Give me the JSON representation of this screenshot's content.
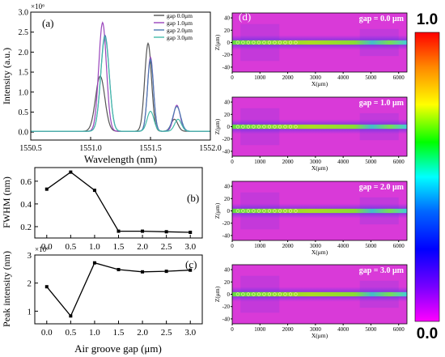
{
  "chart_data": [
    {
      "panel_label": "(a)",
      "type": "line",
      "xlabel": "Wavelength (nm)",
      "ylabel": "Intensity (a.u.)",
      "y_multiplier": "×10⁶",
      "xlim": [
        1550.5,
        1552.0
      ],
      "ylim": [
        -0.2,
        3.0
      ],
      "x_ticks": [
        "1550.5",
        "1551.0",
        "1551.5",
        "1552.0"
      ],
      "y_ticks": [
        "0.0",
        "0.5",
        "1.0",
        "1.5",
        "2.0",
        "2.5",
        "3.0"
      ],
      "legend_position": "top-right",
      "series": [
        {
          "name": "gap 0.0μm",
          "color": "#555555",
          "peaks": [
            {
              "x": 1551.08,
              "h": 1.38,
              "w": 0.055
            },
            {
              "x": 1551.48,
              "h": 2.2,
              "w": 0.04
            },
            {
              "x": 1551.7,
              "h": 0.3,
              "w": 0.04
            }
          ]
        },
        {
          "name": "gap 1.0μm",
          "color": "#9944bb",
          "peaks": [
            {
              "x": 1551.1,
              "h": 2.72,
              "w": 0.045
            },
            {
              "x": 1551.5,
              "h": 1.85,
              "w": 0.035
            },
            {
              "x": 1551.72,
              "h": 0.65,
              "w": 0.04
            }
          ]
        },
        {
          "name": "gap 2.0μm",
          "color": "#4a7ab0",
          "peaks": [
            {
              "x": 1551.12,
              "h": 2.4,
              "w": 0.05
            },
            {
              "x": 1551.5,
              "h": 1.8,
              "w": 0.035
            },
            {
              "x": 1551.72,
              "h": 0.62,
              "w": 0.045
            }
          ]
        },
        {
          "name": "gap 3.0μm",
          "color": "#44bbaa",
          "peaks": [
            {
              "x": 1551.12,
              "h": 2.35,
              "w": 0.05
            },
            {
              "x": 1551.5,
              "h": 0.5,
              "w": 0.04
            },
            {
              "x": 1551.73,
              "h": 0.3,
              "w": 0.04
            }
          ]
        }
      ]
    },
    {
      "panel_label": "(b)",
      "type": "line",
      "xlabel": "",
      "ylabel": "FWHM (nm)",
      "xlim": [
        -0.25,
        3.25
      ],
      "ylim": [
        0.1,
        0.72
      ],
      "x_ticks": [
        "0.0",
        "0.5",
        "1.0",
        "1.5",
        "2.0",
        "2.5",
        "3.0"
      ],
      "y_ticks": [
        "0.2",
        "0.4",
        "0.6"
      ],
      "x": [
        0.0,
        0.5,
        1.0,
        1.5,
        2.0,
        2.5,
        3.0
      ],
      "y": [
        0.53,
        0.68,
        0.52,
        0.16,
        0.16,
        0.155,
        0.15
      ]
    },
    {
      "panel_label": "(c)",
      "type": "line",
      "xlabel": "Air groove gap (μm)",
      "ylabel": "Peak intensity (nm)",
      "y_multiplier": "×10⁶",
      "xlim": [
        -0.25,
        3.25
      ],
      "ylim": [
        0.55,
        3.0
      ],
      "x_ticks": [
        "0.0",
        "0.5",
        "1.0",
        "1.5",
        "2.0",
        "2.5",
        "3.0"
      ],
      "y_ticks": [
        "1",
        "2",
        "3"
      ],
      "x": [
        0.0,
        0.5,
        1.0,
        1.5,
        2.0,
        2.5,
        3.0
      ],
      "y": [
        1.87,
        0.83,
        2.72,
        2.48,
        2.4,
        2.42,
        2.46
      ]
    },
    {
      "panel_label": "(d)",
      "type": "heatmap",
      "xlabel": "X(μm)",
      "ylabel": "Z(μm)",
      "xlim": [
        0,
        6300
      ],
      "ylim": [
        -48,
        48
      ],
      "x_ticks": [
        "0",
        "1000",
        "2000",
        "3000",
        "4000",
        "5000",
        "6000"
      ],
      "y_ticks": [
        "40",
        "20",
        "0",
        "-20",
        "-40"
      ],
      "maps": [
        {
          "label": "gap = 0.0 μm"
        },
        {
          "label": "gap = 1.0 μm"
        },
        {
          "label": "gap = 2.0 μm"
        },
        {
          "label": "gap = 3.0 μm"
        }
      ],
      "colorbar": {
        "max_label": "1.0",
        "min_label": "0.0",
        "colors": [
          "#ff0000",
          "#ff8800",
          "#ffff00",
          "#00ff00",
          "#00ffff",
          "#0066ff",
          "#0000ff",
          "#7700ff",
          "#ff00ff"
        ]
      }
    }
  ]
}
